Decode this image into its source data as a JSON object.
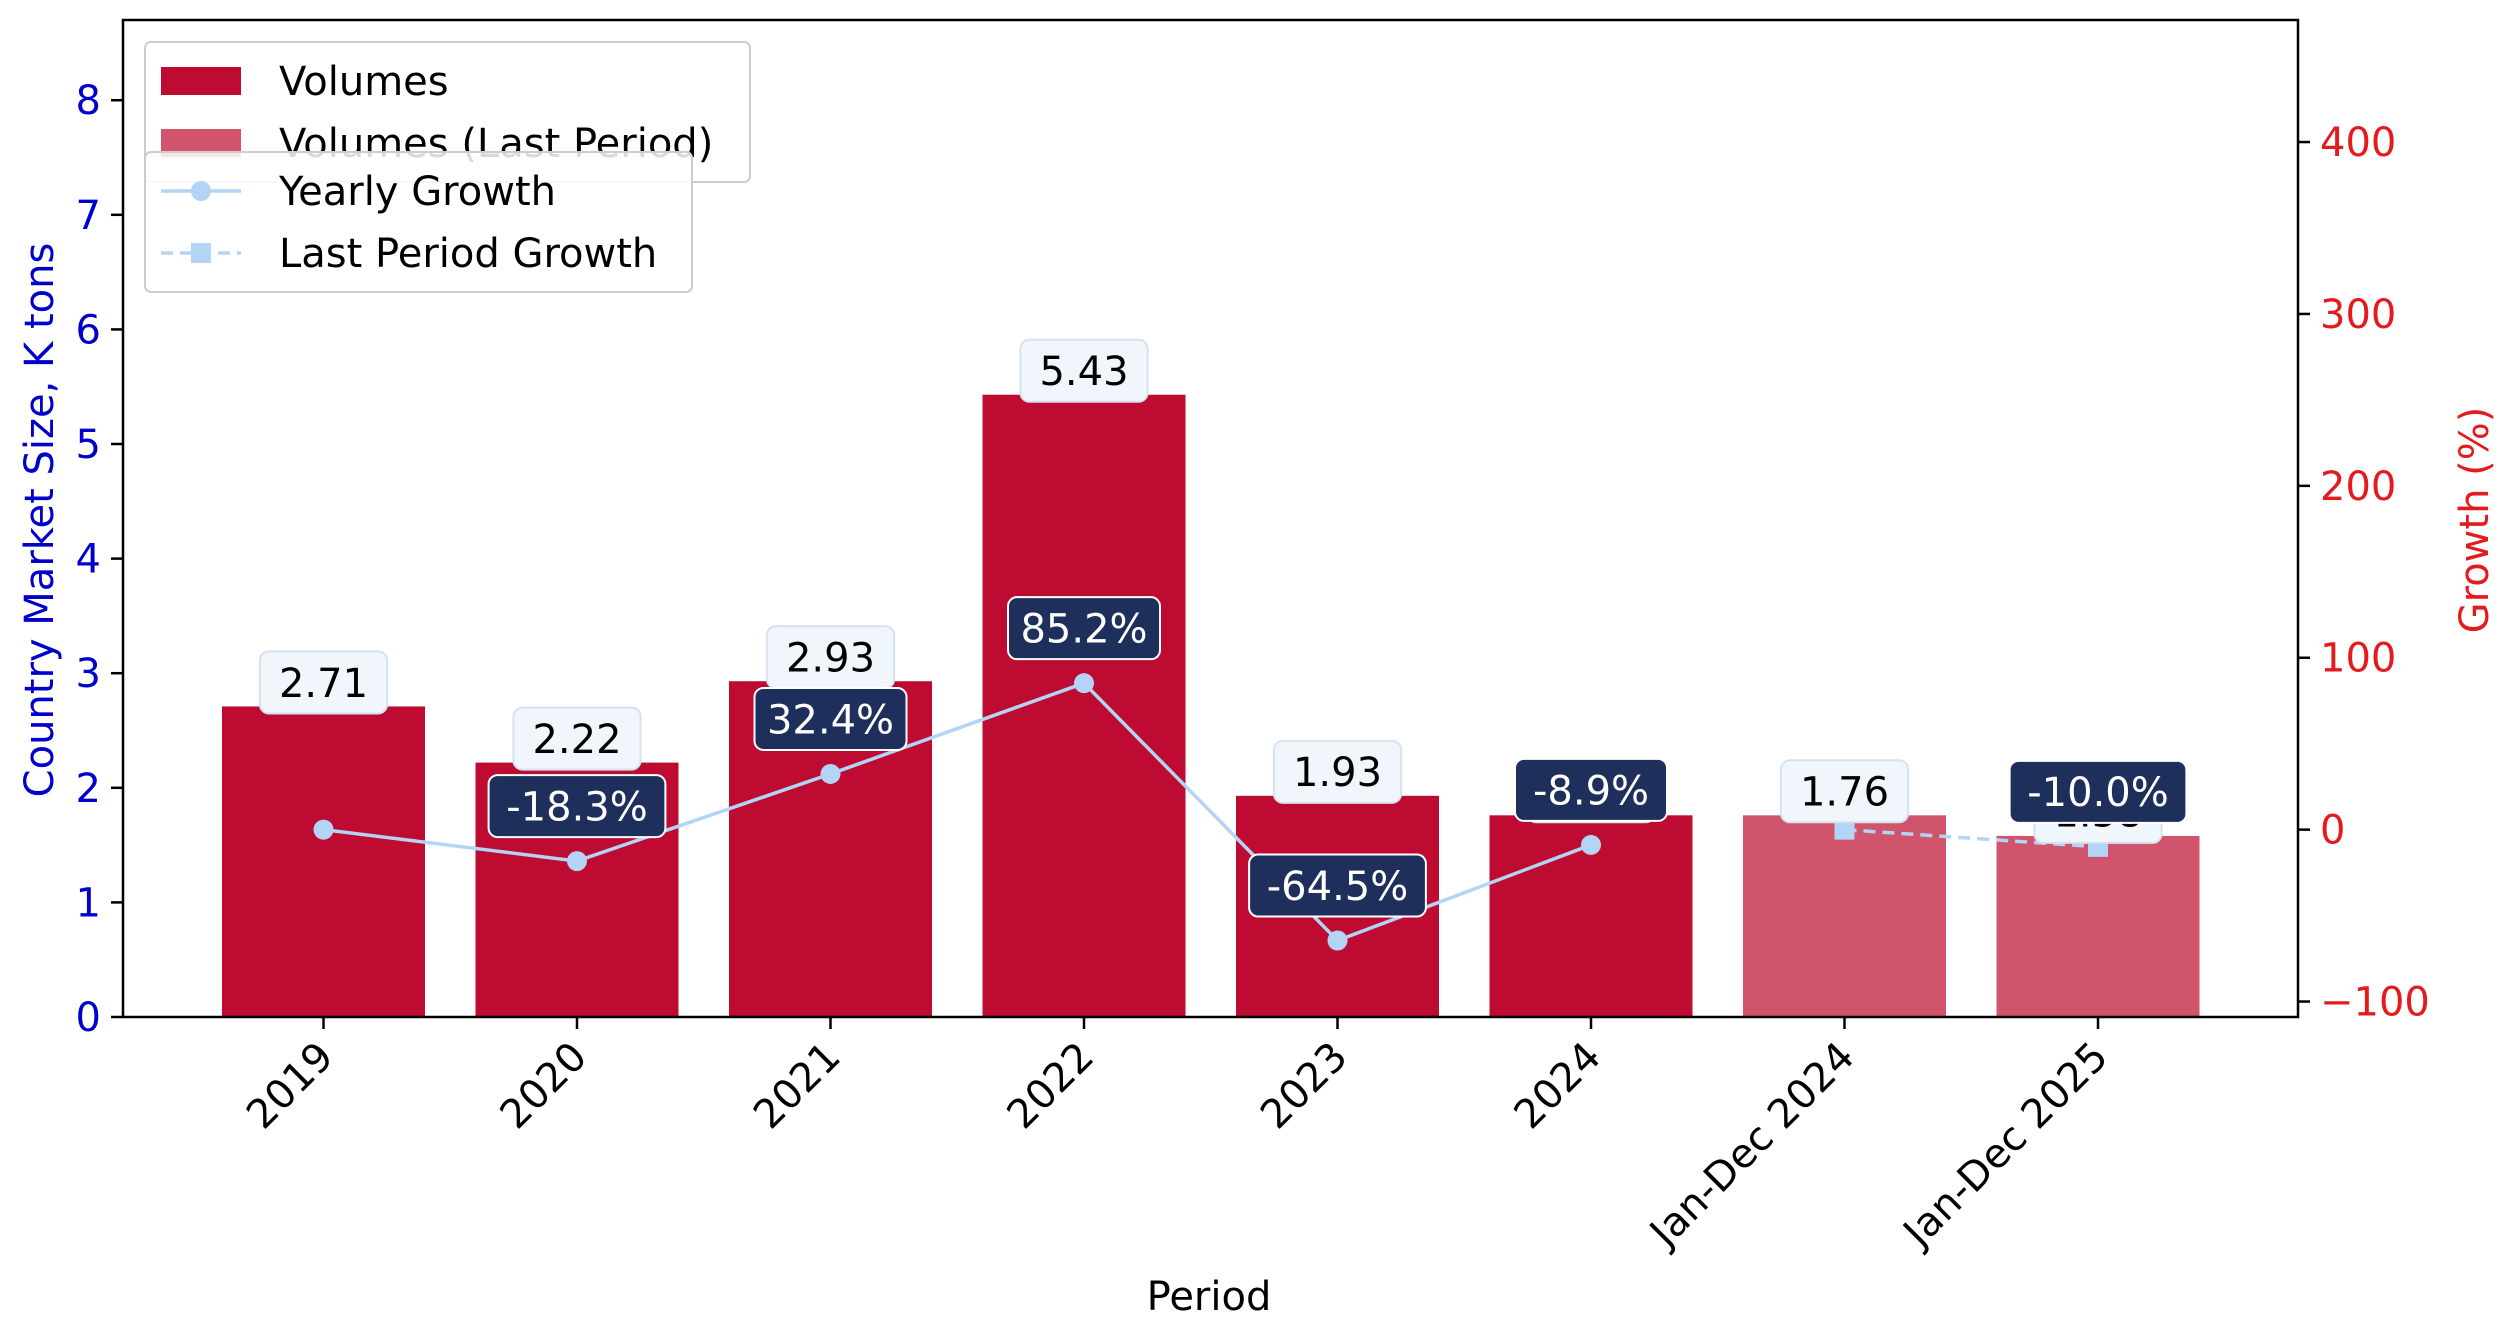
{
  "chart_data": {
    "type": "bar",
    "xlabel": "Period",
    "ylabel": "Country Market Size, K tons",
    "y2label": "Growth (%)",
    "categories": [
      "2019",
      "2020",
      "2021",
      "2022",
      "2023",
      "2024",
      "Jan-Dec 2024",
      "Jan-Dec 2025"
    ],
    "ylim": [
      0,
      8.7
    ],
    "y2lim": [
      -109,
      471
    ],
    "yticks": [
      0,
      1,
      2,
      3,
      4,
      5,
      6,
      7,
      8
    ],
    "y2ticks": [
      -100,
      0,
      100,
      200,
      300,
      400
    ],
    "y2tick_labels": [
      "−100",
      "0",
      "100",
      "200",
      "300",
      "400"
    ],
    "series": [
      {
        "name": "Volumes",
        "kind": "bar",
        "axis": "left",
        "color": "#BE0B31",
        "values": [
          2.71,
          2.22,
          2.93,
          5.43,
          1.93,
          1.76,
          null,
          null
        ],
        "labels": [
          "2.71",
          "2.22",
          "2.93",
          "5.43",
          "1.93",
          "1.76",
          null,
          null
        ]
      },
      {
        "name": "Volumes (Last Period)",
        "kind": "bar",
        "axis": "left",
        "color": "#D0546C",
        "values": [
          null,
          null,
          null,
          null,
          null,
          null,
          1.76,
          1.58
        ],
        "labels": [
          null,
          null,
          null,
          null,
          null,
          null,
          "1.76",
          "1.58"
        ]
      },
      {
        "name": "Yearly Growth",
        "kind": "line",
        "style": "solid",
        "marker": "circle",
        "axis": "right",
        "color": "#B3D4F5",
        "values": [
          0,
          -18.3,
          32.4,
          85.2,
          -64.5,
          -8.9,
          null,
          null
        ],
        "labels": [
          null,
          "-18.3%",
          "32.4%",
          "85.2%",
          "-64.5%",
          "-8.9%",
          null,
          null
        ]
      },
      {
        "name": "Last Period Growth",
        "kind": "line",
        "style": "dashed",
        "marker": "square",
        "axis": "right",
        "color": "#B3D4F5",
        "values": [
          null,
          null,
          null,
          null,
          null,
          null,
          0,
          -10.0
        ],
        "labels": [
          null,
          null,
          null,
          null,
          null,
          null,
          null,
          "-10.0%"
        ]
      }
    ],
    "legend": [
      {
        "placement": "top-left",
        "entries": [
          "Volumes",
          "Volumes (Last Period)"
        ]
      },
      {
        "placement": "upper-left",
        "entries": [
          "Yearly Growth",
          "Last Period Growth"
        ]
      }
    ],
    "grid": false,
    "colors": {
      "left_axis": "#0000CC",
      "right_axis": "#E41A1C",
      "growth_label_bg": "#1F2F5C",
      "value_label_bg": "#F0F6FB"
    }
  }
}
